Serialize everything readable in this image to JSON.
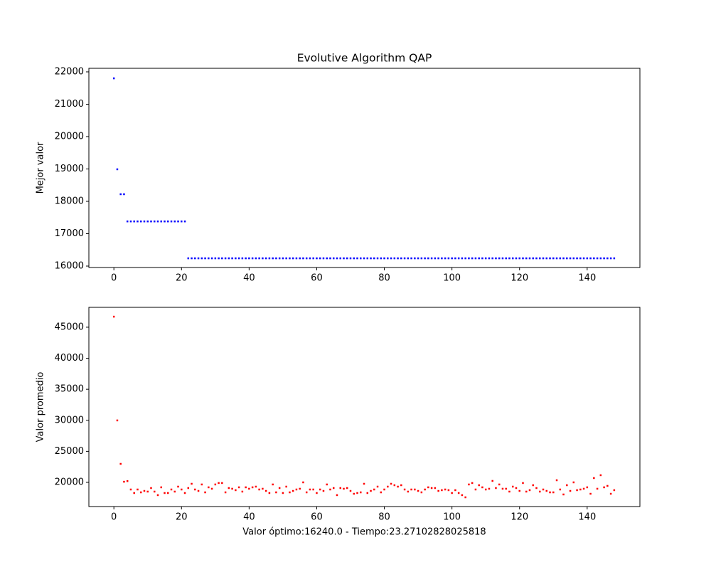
{
  "chart_data": [
    {
      "type": "scatter",
      "title": "Evolutive Algorithm QAP",
      "ylabel": "Mejor valor",
      "color": "#0000ff",
      "x": [
        0,
        1,
        2,
        3,
        4,
        5,
        6,
        7,
        8,
        9,
        10,
        11,
        12,
        13,
        14,
        15,
        16,
        17,
        18,
        19,
        20,
        21,
        22,
        23,
        24,
        25,
        26,
        27,
        28,
        29,
        30,
        31,
        32,
        33,
        34,
        35,
        36,
        37,
        38,
        39,
        40,
        41,
        42,
        43,
        44,
        45,
        46,
        47,
        48,
        49,
        50,
        51,
        52,
        53,
        54,
        55,
        56,
        57,
        58,
        59,
        60,
        61,
        62,
        63,
        64,
        65,
        66,
        67,
        68,
        69,
        70,
        71,
        72,
        73,
        74,
        75,
        76,
        77,
        78,
        79,
        80,
        81,
        82,
        83,
        84,
        85,
        86,
        87,
        88,
        89,
        90,
        91,
        92,
        93,
        94,
        95,
        96,
        97,
        98,
        99,
        100,
        101,
        102,
        103,
        104,
        105,
        106,
        107,
        108,
        109,
        110,
        111,
        112,
        113,
        114,
        115,
        116,
        117,
        118,
        119,
        120,
        121,
        122,
        123,
        124,
        125,
        126,
        127,
        128,
        129,
        130,
        131,
        132,
        133,
        134,
        135,
        136,
        137,
        138,
        139,
        140,
        141,
        142,
        143,
        144,
        145,
        146,
        147,
        148
      ],
      "values": [
        21800,
        18990,
        18220,
        18220,
        17380,
        17380,
        17380,
        17380,
        17380,
        17380,
        17380,
        17380,
        17380,
        17380,
        17380,
        17380,
        17380,
        17380,
        17380,
        17380,
        17380,
        17380,
        16240,
        16240,
        16240,
        16240,
        16240,
        16240,
        16240,
        16240,
        16240,
        16240,
        16240,
        16240,
        16240,
        16240,
        16240,
        16240,
        16240,
        16240,
        16240,
        16240,
        16240,
        16240,
        16240,
        16240,
        16240,
        16240,
        16240,
        16240,
        16240,
        16240,
        16240,
        16240,
        16240,
        16240,
        16240,
        16240,
        16240,
        16240,
        16240,
        16240,
        16240,
        16240,
        16240,
        16240,
        16240,
        16240,
        16240,
        16240,
        16240,
        16240,
        16240,
        16240,
        16240,
        16240,
        16240,
        16240,
        16240,
        16240,
        16240,
        16240,
        16240,
        16240,
        16240,
        16240,
        16240,
        16240,
        16240,
        16240,
        16240,
        16240,
        16240,
        16240,
        16240,
        16240,
        16240,
        16240,
        16240,
        16240,
        16240,
        16240,
        16240,
        16240,
        16240,
        16240,
        16240,
        16240,
        16240,
        16240,
        16240,
        16240,
        16240,
        16240,
        16240,
        16240,
        16240,
        16240,
        16240,
        16240,
        16240,
        16240,
        16240,
        16240,
        16240,
        16240,
        16240,
        16240,
        16240,
        16240,
        16240,
        16240,
        16240,
        16240,
        16240,
        16240,
        16240,
        16240,
        16240,
        16240,
        16240,
        16240,
        16240,
        16240,
        16240,
        16240,
        16240,
        16240,
        16240
      ],
      "xlim": [
        -7.4,
        155.6
      ],
      "ylim": [
        15956,
        22110
      ],
      "xticks": [
        0,
        20,
        40,
        60,
        80,
        100,
        120,
        140
      ],
      "yticks": [
        16000,
        17000,
        18000,
        19000,
        20000,
        21000,
        22000
      ]
    },
    {
      "type": "scatter",
      "ylabel": "Valor promedio",
      "xlabel": "Valor óptimo:16240.0 - Tiempo:23.27102828025818",
      "color": "#ff0000",
      "x": [
        0,
        1,
        2,
        3,
        4,
        5,
        6,
        7,
        8,
        9,
        10,
        11,
        12,
        13,
        14,
        15,
        16,
        17,
        18,
        19,
        20,
        21,
        22,
        23,
        24,
        25,
        26,
        27,
        28,
        29,
        30,
        31,
        32,
        33,
        34,
        35,
        36,
        37,
        38,
        39,
        40,
        41,
        42,
        43,
        44,
        45,
        46,
        47,
        48,
        49,
        50,
        51,
        52,
        53,
        54,
        55,
        56,
        57,
        58,
        59,
        60,
        61,
        62,
        63,
        64,
        65,
        66,
        67,
        68,
        69,
        70,
        71,
        72,
        73,
        74,
        75,
        76,
        77,
        78,
        79,
        80,
        81,
        82,
        83,
        84,
        85,
        86,
        87,
        88,
        89,
        90,
        91,
        92,
        93,
        94,
        95,
        96,
        97,
        98,
        99,
        100,
        101,
        102,
        103,
        104,
        105,
        106,
        107,
        108,
        109,
        110,
        111,
        112,
        113,
        114,
        115,
        116,
        117,
        118,
        119,
        120,
        121,
        122,
        123,
        124,
        125,
        126,
        127,
        128,
        129,
        130,
        131,
        132,
        133,
        134,
        135,
        136,
        137,
        138,
        139,
        140,
        141,
        142,
        143,
        144,
        145,
        146,
        147,
        148
      ],
      "values": [
        46700,
        29980,
        22980,
        20100,
        20200,
        18850,
        18280,
        18850,
        18390,
        18620,
        18510,
        19080,
        18510,
        17940,
        19200,
        18280,
        18280,
        18850,
        18510,
        19310,
        18850,
        18280,
        19080,
        19770,
        18850,
        18620,
        19660,
        18390,
        19200,
        18970,
        19660,
        19890,
        19890,
        18390,
        19080,
        18970,
        18740,
        19200,
        18510,
        19200,
        18970,
        19200,
        19310,
        18850,
        18970,
        18620,
        18280,
        19660,
        18390,
        19080,
        18280,
        19310,
        18390,
        18620,
        18850,
        18970,
        20000,
        18390,
        18850,
        18850,
        18280,
        18850,
        18620,
        19660,
        18850,
        19080,
        17940,
        19080,
        18970,
        19080,
        18620,
        18160,
        18280,
        18390,
        19770,
        18280,
        18620,
        18850,
        19310,
        18390,
        18850,
        19310,
        19770,
        19540,
        19310,
        19540,
        18850,
        18510,
        18850,
        18850,
        18620,
        18390,
        18850,
        19200,
        19080,
        19080,
        18620,
        18740,
        18850,
        18740,
        18280,
        18740,
        18280,
        17940,
        17590,
        19660,
        19890,
        18850,
        19540,
        19200,
        18850,
        18970,
        20230,
        19080,
        19660,
        18970,
        18970,
        18510,
        19310,
        19080,
        18620,
        19890,
        18510,
        18740,
        19540,
        19080,
        18510,
        18850,
        18620,
        18390,
        18390,
        20340,
        18850,
        18050,
        19540,
        18620,
        20000,
        18740,
        18850,
        18970,
        19200,
        18160,
        20690,
        18970,
        21150,
        19200,
        19430,
        18160,
        18740
      ],
      "xlim": [
        -7.4,
        155.6
      ],
      "ylim": [
        16100,
        48200
      ],
      "xticks": [
        0,
        20,
        40,
        60,
        80,
        100,
        120,
        140
      ],
      "yticks": [
        20000,
        25000,
        30000,
        35000,
        40000,
        45000
      ]
    }
  ]
}
